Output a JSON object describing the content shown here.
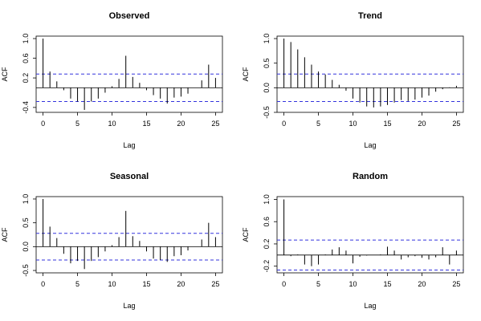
{
  "chart_data": [
    {
      "type": "acf",
      "title": "Observed",
      "xlabel": "Lag",
      "ylabel": "ACF",
      "x": [
        0,
        1,
        2,
        3,
        4,
        5,
        6,
        7,
        8,
        9,
        10,
        11,
        12,
        13,
        14,
        15,
        16,
        17,
        18,
        19,
        20,
        21,
        22,
        23,
        24,
        25
      ],
      "values": [
        1.0,
        0.33,
        0.13,
        -0.05,
        -0.22,
        -0.28,
        -0.45,
        -0.28,
        -0.22,
        -0.1,
        0.03,
        0.18,
        0.65,
        0.22,
        0.1,
        -0.05,
        -0.15,
        -0.22,
        -0.32,
        -0.2,
        -0.18,
        -0.12,
        0.0,
        0.15,
        0.47,
        0.2
      ],
      "ci": 0.28,
      "color": "#000000",
      "ci_color": "#3333dd",
      "xlim": [
        -1,
        26
      ],
      "ylim": [
        -0.5,
        1.05
      ],
      "xticks": [
        0,
        5,
        10,
        15,
        20,
        25
      ],
      "yticks": [
        {
          "value": -0.4,
          "label": "-0.4"
        },
        {
          "value": 0.2,
          "label": "0.2"
        },
        {
          "value": 0.6,
          "label": "0.6"
        },
        {
          "value": 1,
          "label": "1.0"
        }
      ]
    },
    {
      "type": "acf",
      "title": "Trend",
      "xlabel": "Lag",
      "ylabel": "ACF",
      "x": [
        0,
        1,
        2,
        3,
        4,
        5,
        6,
        7,
        8,
        9,
        10,
        11,
        12,
        13,
        14,
        15,
        16,
        17,
        18,
        19,
        20,
        21,
        22,
        23,
        24,
        25
      ],
      "values": [
        1.0,
        0.93,
        0.78,
        0.62,
        0.47,
        0.33,
        0.27,
        0.16,
        0.06,
        -0.06,
        -0.22,
        -0.3,
        -0.38,
        -0.4,
        -0.38,
        -0.35,
        -0.3,
        -0.25,
        -0.27,
        -0.24,
        -0.2,
        -0.16,
        -0.08,
        -0.03,
        0.01,
        0.04
      ],
      "ci": 0.28,
      "color": "#000000",
      "ci_color": "#3333dd",
      "xlim": [
        -1,
        26
      ],
      "ylim": [
        -0.5,
        1.05
      ],
      "xticks": [
        0,
        5,
        10,
        15,
        20,
        25
      ],
      "yticks": [
        -0.5,
        {
          "value": 0,
          "label": "0.0"
        },
        0.5,
        {
          "value": 1,
          "label": "1.0"
        }
      ]
    },
    {
      "type": "acf",
      "title": "Seasonal",
      "xlabel": "Lag",
      "ylabel": "ACF",
      "x": [
        0,
        1,
        2,
        3,
        4,
        5,
        6,
        7,
        8,
        9,
        10,
        11,
        12,
        13,
        14,
        15,
        16,
        17,
        18,
        19,
        20,
        21,
        22,
        23,
        24,
        25
      ],
      "values": [
        1.0,
        0.42,
        0.18,
        -0.15,
        -0.35,
        -0.3,
        -0.47,
        -0.3,
        -0.22,
        -0.1,
        0.03,
        0.2,
        0.75,
        0.22,
        0.12,
        -0.1,
        -0.25,
        -0.28,
        -0.32,
        -0.2,
        -0.18,
        -0.08,
        0.0,
        0.15,
        0.5,
        0.2
      ],
      "ci": 0.28,
      "color": "#000000",
      "ci_color": "#3333dd",
      "xlim": [
        -1,
        26
      ],
      "ylim": [
        -0.55,
        1.05
      ],
      "xticks": [
        0,
        5,
        10,
        15,
        20,
        25
      ],
      "yticks": [
        -0.5,
        {
          "value": 0,
          "label": "0.0"
        },
        0.5,
        {
          "value": 1,
          "label": "1.0"
        }
      ]
    },
    {
      "type": "acf",
      "title": "Random",
      "xlabel": "Lag",
      "ylabel": "ACF",
      "x": [
        0,
        1,
        2,
        3,
        4,
        5,
        6,
        7,
        8,
        9,
        10,
        11,
        12,
        13,
        14,
        15,
        16,
        17,
        18,
        19,
        20,
        21,
        22,
        23,
        24,
        25
      ],
      "values": [
        1.0,
        -0.02,
        0.01,
        -0.17,
        -0.2,
        -0.17,
        0.01,
        0.1,
        0.14,
        0.08,
        -0.15,
        -0.03,
        -0.01,
        0.0,
        0.01,
        0.15,
        0.08,
        -0.08,
        -0.04,
        -0.02,
        -0.05,
        -0.08,
        -0.04,
        0.14,
        -0.17,
        0.08
      ],
      "ci": 0.27,
      "color": "#000000",
      "ci_color": "#3333dd",
      "xlim": [
        -1,
        26
      ],
      "ylim": [
        -0.32,
        1.05
      ],
      "xticks": [
        0,
        5,
        10,
        15,
        20,
        25
      ],
      "yticks": [
        -0.2,
        0.2,
        0.6,
        {
          "value": 1,
          "label": "1.0"
        }
      ]
    }
  ]
}
